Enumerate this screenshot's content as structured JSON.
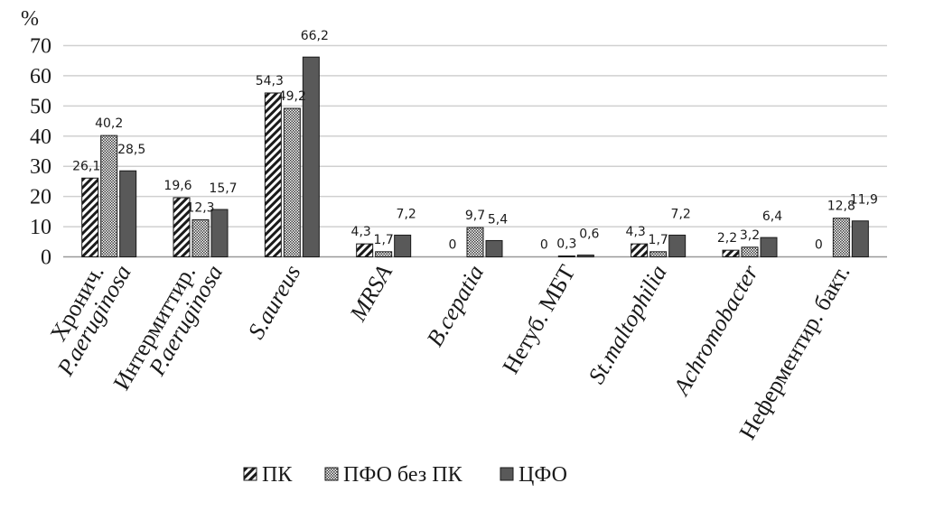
{
  "chart_data": {
    "type": "bar",
    "ylabel": "%",
    "ylim": [
      0,
      70
    ],
    "yticks": [
      0,
      10,
      20,
      30,
      40,
      50,
      60,
      70
    ],
    "grid": true,
    "legend_position": "bottom",
    "categories": [
      {
        "lines": [
          "Хронич.",
          "P.aeruginosa"
        ],
        "italic": [
          false,
          true
        ]
      },
      {
        "lines": [
          "Интермиттир.",
          "P.aeruginosa"
        ],
        "italic": [
          false,
          true
        ]
      },
      {
        "lines": [
          "S.aureus"
        ],
        "italic": [
          true
        ]
      },
      {
        "lines": [
          "MRSA"
        ],
        "italic": [
          true
        ]
      },
      {
        "lines": [
          "B.cepatia"
        ],
        "italic": [
          true
        ]
      },
      {
        "lines": [
          "Нетуб. МБТ"
        ],
        "italic": [
          false
        ]
      },
      {
        "lines": [
          "St.maltophilia"
        ],
        "italic": [
          true
        ]
      },
      {
        "lines": [
          "Achromobacter"
        ],
        "italic": [
          true
        ]
      },
      {
        "lines": [
          "Неферментир. бакт."
        ],
        "italic": [
          false
        ]
      }
    ],
    "series": [
      {
        "name": "ПК",
        "pattern": "diagonal-stripes",
        "values": [
          26.1,
          19.6,
          54.3,
          4.3,
          0,
          0,
          4.3,
          2.2,
          0
        ],
        "labels": [
          "26,1",
          "19,6",
          "54,3",
          "4,3",
          "0",
          "0",
          "4,3",
          "2,2",
          "0"
        ]
      },
      {
        "name": "ПФО без ПК",
        "pattern": "checker",
        "values": [
          40.2,
          12.3,
          49.2,
          1.7,
          9.7,
          0.3,
          1.7,
          3.2,
          12.8
        ],
        "labels": [
          "40,2",
          "12,3",
          "49,2",
          "1,7",
          "9,7",
          "0,3",
          "1,7",
          "3,2",
          "12,8"
        ]
      },
      {
        "name": "ЦФО",
        "pattern": "solid",
        "values": [
          28.5,
          15.7,
          66.2,
          7.2,
          5.4,
          0.6,
          7.2,
          6.4,
          11.9
        ],
        "labels": [
          "28,5",
          "15,7",
          "66,2",
          "7,2",
          "5,4",
          "0,6",
          "7,2",
          "6,4",
          "11,9"
        ]
      }
    ],
    "colors": {
      "solid": "#595959",
      "edge": "#1a1a1a",
      "grid": "#d0d0d0",
      "text": "#1a1a1a"
    }
  }
}
